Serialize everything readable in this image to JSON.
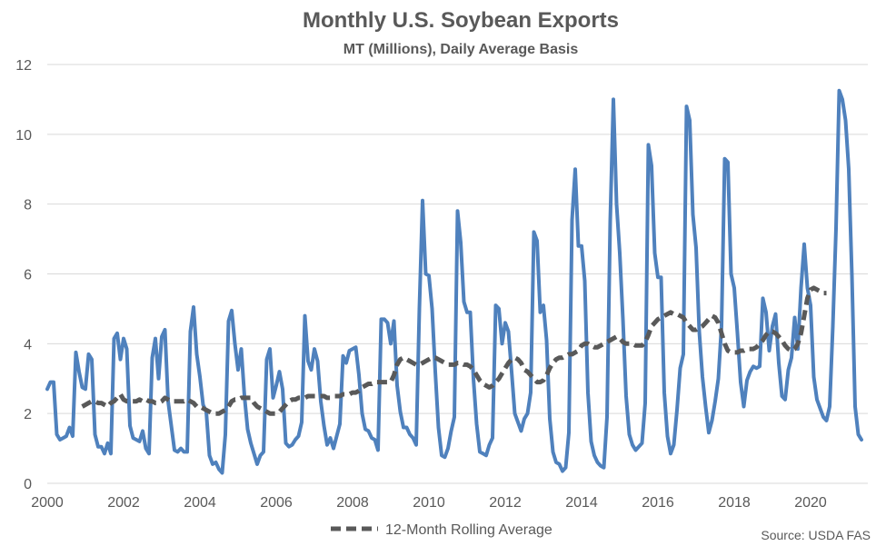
{
  "chart_data": {
    "type": "line",
    "title": "Monthly U.S. Soybean Exports",
    "subtitle": "MT (Millions), Daily Average Basis",
    "source": "Source: USDA FAS",
    "x_range": [
      2000,
      2021.5
    ],
    "y_range": [
      0,
      12
    ],
    "x_ticks": [
      2000,
      2002,
      2004,
      2006,
      2008,
      2010,
      2012,
      2014,
      2016,
      2018,
      2020
    ],
    "y_ticks": [
      0,
      2,
      4,
      6,
      8,
      10,
      12
    ],
    "grid": "horizontal",
    "legend_position": "bottom",
    "series": [
      {
        "name": "",
        "color": "#4f81bd",
        "style": "solid",
        "start": 2000.0,
        "step": 0.0833333,
        "values": [
          2.7,
          2.9,
          2.9,
          1.4,
          1.25,
          1.3,
          1.35,
          1.6,
          1.35,
          3.75,
          3.2,
          2.75,
          2.7,
          3.7,
          3.55,
          1.4,
          1.05,
          1.05,
          0.85,
          1.15,
          0.85,
          4.15,
          4.3,
          3.55,
          4.15,
          3.85,
          1.65,
          1.3,
          1.25,
          1.2,
          1.5,
          1.0,
          0.85,
          3.6,
          4.15,
          3.0,
          4.2,
          4.4,
          2.35,
          1.65,
          0.95,
          0.9,
          1.0,
          0.9,
          0.9,
          4.35,
          5.05,
          3.7,
          3.05,
          2.25,
          2.05,
          0.8,
          0.55,
          0.6,
          0.4,
          0.3,
          1.4,
          4.65,
          4.95,
          4.0,
          3.25,
          3.85,
          2.5,
          1.55,
          1.15,
          0.85,
          0.55,
          0.8,
          0.9,
          3.55,
          3.85,
          2.45,
          2.8,
          3.2,
          2.7,
          1.15,
          1.05,
          1.1,
          1.25,
          1.35,
          1.75,
          4.8,
          3.5,
          3.25,
          3.85,
          3.5,
          2.35,
          1.65,
          1.1,
          1.3,
          1.0,
          1.35,
          1.7,
          3.65,
          3.45,
          3.8,
          3.85,
          3.9,
          3.1,
          2.0,
          1.55,
          1.5,
          1.3,
          1.25,
          0.95,
          4.7,
          4.7,
          4.6,
          4.0,
          4.65,
          2.8,
          2.05,
          1.6,
          1.6,
          1.4,
          1.3,
          1.1,
          5.0,
          8.1,
          6.0,
          5.95,
          5.0,
          3.2,
          1.6,
          0.8,
          0.75,
          1.0,
          1.5,
          1.9,
          7.8,
          6.9,
          5.2,
          4.9,
          4.9,
          3.0,
          1.7,
          0.9,
          0.85,
          0.8,
          1.1,
          1.3,
          5.1,
          5.0,
          4.0,
          4.6,
          4.35,
          3.2,
          2.0,
          1.75,
          1.5,
          1.85,
          2.0,
          2.6,
          7.2,
          6.95,
          4.9,
          5.1,
          4.1,
          1.85,
          0.9,
          0.6,
          0.55,
          0.35,
          0.45,
          1.45,
          7.55,
          9.0,
          6.8,
          6.8,
          5.8,
          2.6,
          1.2,
          0.8,
          0.6,
          0.5,
          0.45,
          1.9,
          7.5,
          11.0,
          8.0,
          6.6,
          4.7,
          2.5,
          1.4,
          1.1,
          0.95,
          1.05,
          1.15,
          2.3,
          9.7,
          9.1,
          6.6,
          5.9,
          5.9,
          2.6,
          1.35,
          0.85,
          1.1,
          2.1,
          3.3,
          3.7,
          10.8,
          10.4,
          7.7,
          6.75,
          4.35,
          3.05,
          2.2,
          1.45,
          1.8,
          2.35,
          3.0,
          4.5,
          9.3,
          9.2,
          6.0,
          5.6,
          4.3,
          2.9,
          2.2,
          2.95,
          3.2,
          3.35,
          3.3,
          3.35,
          5.3,
          4.9,
          3.8,
          4.5,
          4.85,
          3.45,
          2.5,
          2.4,
          3.25,
          3.6,
          4.75,
          3.85,
          5.6,
          6.85,
          5.6,
          5.1,
          3.05,
          2.4,
          2.15,
          1.9,
          1.8,
          2.2,
          4.5,
          7.3,
          11.25,
          11.0,
          10.4,
          9.0,
          5.95,
          2.2,
          1.4,
          1.25
        ]
      },
      {
        "name": "12-Month Rolling Average",
        "color": "#595959",
        "style": "dashed",
        "start": 2000.917,
        "step": 0.0833333,
        "values": [
          2.2,
          2.25,
          2.3,
          2.35,
          2.35,
          2.3,
          2.3,
          2.25,
          2.2,
          2.3,
          2.35,
          2.45,
          2.55,
          2.4,
          2.35,
          2.35,
          2.35,
          2.35,
          2.4,
          2.35,
          2.4,
          2.35,
          2.35,
          2.3,
          2.3,
          2.35,
          2.45,
          2.4,
          2.35,
          2.35,
          2.35,
          2.35,
          2.35,
          2.4,
          2.35,
          2.3,
          2.2,
          2.2,
          2.15,
          2.1,
          2.05,
          2.0,
          2.0,
          2.0,
          2.05,
          2.1,
          2.2,
          2.35,
          2.4,
          2.4,
          2.45,
          2.45,
          2.45,
          2.45,
          2.3,
          2.2,
          2.15,
          2.1,
          2.05,
          2.0,
          2.0,
          2.0,
          2.05,
          2.15,
          2.25,
          2.35,
          2.4,
          2.4,
          2.45,
          2.45,
          2.45,
          2.5,
          2.5,
          2.5,
          2.5,
          2.5,
          2.5,
          2.45,
          2.45,
          2.5,
          2.5,
          2.5,
          2.55,
          2.55,
          2.55,
          2.6,
          2.6,
          2.65,
          2.75,
          2.8,
          2.85,
          2.85,
          2.9,
          2.9,
          2.9,
          2.9,
          2.9,
          2.9,
          3.1,
          3.4,
          3.55,
          3.6,
          3.55,
          3.5,
          3.45,
          3.4,
          3.4,
          3.45,
          3.5,
          3.55,
          3.6,
          3.6,
          3.55,
          3.5,
          3.45,
          3.4,
          3.4,
          3.4,
          3.45,
          3.45,
          3.4,
          3.4,
          3.35,
          3.25,
          3.1,
          2.95,
          2.85,
          2.8,
          2.75,
          2.8,
          2.9,
          3.0,
          3.15,
          3.3,
          3.45,
          3.55,
          3.6,
          3.55,
          3.45,
          3.25,
          3.2,
          3.1,
          3.0,
          2.9,
          2.9,
          2.95,
          3.1,
          3.3,
          3.45,
          3.55,
          3.6,
          3.6,
          3.65,
          3.7,
          3.7,
          3.75,
          3.8,
          3.95,
          4.0,
          4.0,
          3.95,
          3.9,
          3.9,
          3.95,
          4.0,
          4.05,
          4.1,
          4.15,
          4.2,
          4.15,
          4.05,
          4.0,
          4.0,
          4.0,
          3.95,
          3.95,
          3.95,
          4.05,
          4.25,
          4.5,
          4.6,
          4.7,
          4.75,
          4.8,
          4.85,
          4.9,
          4.85,
          4.85,
          4.8,
          4.75,
          4.6,
          4.5,
          4.4,
          4.4,
          4.45,
          4.5,
          4.6,
          4.7,
          4.8,
          4.75,
          4.6,
          4.3,
          4.0,
          3.8,
          3.75,
          3.75,
          3.75,
          3.8,
          3.8,
          3.85,
          3.85,
          3.85,
          3.9,
          4.0,
          4.1,
          4.25,
          4.35,
          4.35,
          4.3,
          4.2,
          4.1,
          3.95,
          3.85,
          3.8,
          3.85,
          4.0,
          4.3,
          4.8,
          5.3,
          5.55,
          5.6,
          5.55,
          5.5,
          5.45,
          5.45
        ]
      }
    ]
  }
}
